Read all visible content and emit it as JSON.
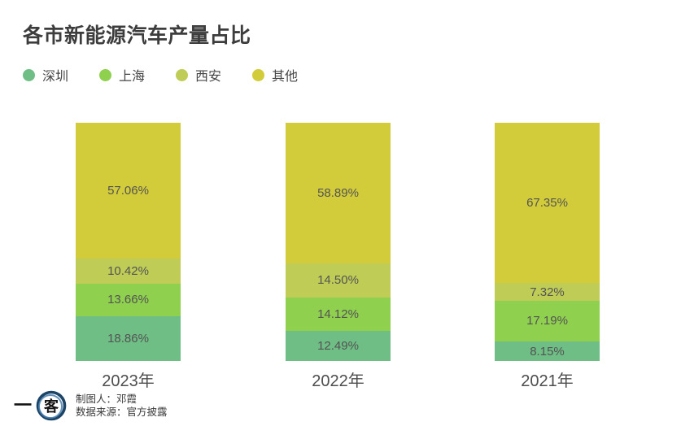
{
  "title": "各市新能源汽车产量占比",
  "footer": {
    "author": "制图人：邓霞",
    "source": "数据来源：官方披露",
    "logo_dash": "一",
    "logo_circle_char": "客",
    "logo_ring_color": "#1b4466",
    "logo_ring_inner_color": "#4a7fae"
  },
  "chart_data": {
    "type": "bar",
    "subtype": "stacked-100-percent",
    "orientation": "vertical",
    "title": "各市新能源汽车产量占比",
    "categories": [
      "2023年",
      "2022年",
      "2021年"
    ],
    "series": [
      {
        "id": "shenzhen",
        "name": "深圳",
        "color": "#6fbe85",
        "values": [
          18.86,
          12.49,
          8.15
        ],
        "labels": [
          "18.86%",
          "12.49%",
          "8.15%"
        ]
      },
      {
        "id": "shanghai",
        "name": "上海",
        "color": "#8fd04f",
        "values": [
          13.66,
          14.12,
          17.19
        ],
        "labels": [
          "13.66%",
          "14.12%",
          "17.19%"
        ]
      },
      {
        "id": "xian",
        "name": "西安",
        "color": "#bfcc55",
        "values": [
          10.42,
          14.5,
          7.32
        ],
        "labels": [
          "10.42%",
          "14.50%",
          "7.32%"
        ]
      },
      {
        "id": "others",
        "name": "其他",
        "color": "#d3cc3a",
        "values": [
          57.06,
          58.89,
          67.35
        ],
        "labels": [
          "57.06%",
          "58.89%",
          "67.35%"
        ]
      }
    ],
    "stack_order_bottom_to_top": [
      "深圳",
      "上海",
      "西安",
      "其他"
    ],
    "legend_position": "top-left",
    "grid": false,
    "axes_visible": false,
    "ylim": [
      0,
      100
    ],
    "unit": "%"
  }
}
